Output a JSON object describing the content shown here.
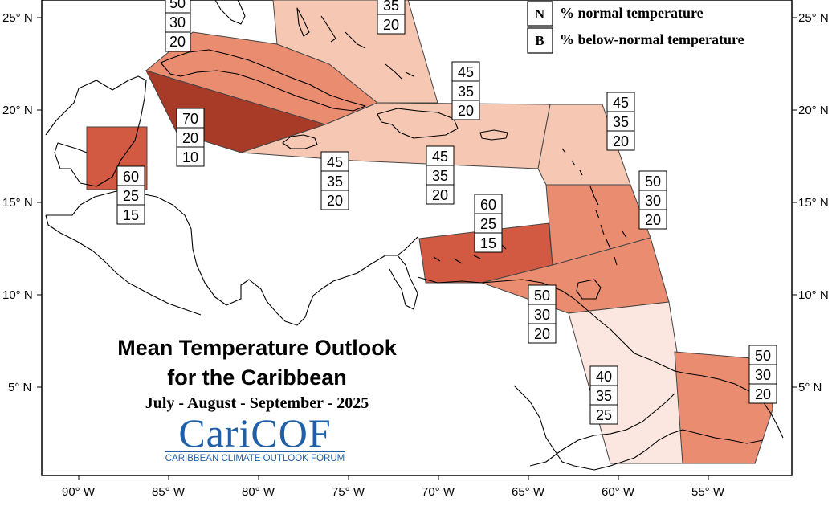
{
  "title_line1": "Mean Temperature Outlook",
  "title_line2": "for the Caribbean",
  "period": "July - August - September - 2025",
  "logo": {
    "name": "CariCOF",
    "subtitle": "CARIBBEAN CLIMATE OUTLOOK FORUM"
  },
  "legend": [
    {
      "key": "N",
      "text": "% normal temperature"
    },
    {
      "key": "B",
      "text": "% below-normal temperature"
    }
  ],
  "lat_labels": [
    "25° N",
    "20° N",
    "15° N",
    "10° N",
    "5° N"
  ],
  "lon_labels": [
    "90° W",
    "85° W",
    "80° W",
    "75° W",
    "70° W",
    "65° W",
    "60° W",
    "55° W"
  ],
  "colors": {
    "above_70": "#a83a28",
    "above_60": "#d25a42",
    "above_50": "#e98c70",
    "above_45": "#f6c8b3",
    "above_40": "#fbe7df"
  },
  "forecast_boxes": [
    {
      "id": "bahamas-west",
      "values": [
        "50",
        "30",
        "20"
      ]
    },
    {
      "id": "bahamas-east",
      "values": [
        "35",
        "20"
      ]
    },
    {
      "id": "cuba-west",
      "values": [
        "70",
        "20",
        "10"
      ]
    },
    {
      "id": "belize",
      "values": [
        "60",
        "25",
        "15"
      ]
    },
    {
      "id": "jamaica",
      "values": [
        "45",
        "35",
        "20"
      ]
    },
    {
      "id": "hispaniola",
      "values": [
        "45",
        "35",
        "20"
      ]
    },
    {
      "id": "turks-caicos",
      "values": [
        "45",
        "35",
        "20"
      ]
    },
    {
      "id": "leeward-islands",
      "values": [
        "45",
        "35",
        "20"
      ]
    },
    {
      "id": "windward-islands",
      "values": [
        "50",
        "30",
        "20"
      ]
    },
    {
      "id": "abc-islands",
      "values": [
        "60",
        "25",
        "15"
      ]
    },
    {
      "id": "trinidad-tobago",
      "values": [
        "50",
        "30",
        "20"
      ]
    },
    {
      "id": "guyana",
      "values": [
        "40",
        "35",
        "25"
      ]
    },
    {
      "id": "suriname-guiana",
      "values": [
        "50",
        "30",
        "20"
      ]
    }
  ]
}
